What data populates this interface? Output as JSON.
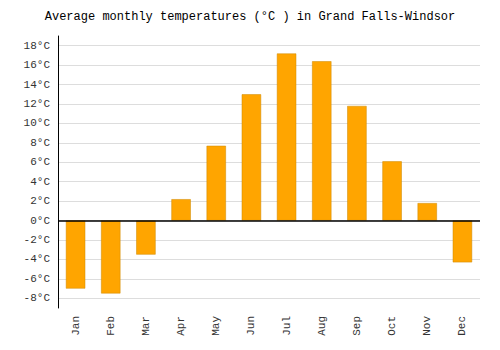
{
  "chart_data": {
    "type": "bar",
    "title": "Average monthly temperatures (°C ) in Grand Falls-Windsor",
    "categories": [
      "Jan",
      "Feb",
      "Mar",
      "Apr",
      "May",
      "Jun",
      "Jul",
      "Aug",
      "Sep",
      "Oct",
      "Nov",
      "Dec"
    ],
    "values": [
      -7.0,
      -7.5,
      -3.5,
      2.2,
      7.7,
      13.0,
      17.2,
      16.4,
      11.8,
      6.1,
      1.8,
      -4.3
    ],
    "color": "#FFA500",
    "ylim": [
      -9,
      19
    ],
    "yticks": [
      {
        "value": -8,
        "label": "-8°C"
      },
      {
        "value": -6,
        "label": "-6°C"
      },
      {
        "value": -4,
        "label": "-4°C"
      },
      {
        "value": -2,
        "label": "-2°C"
      },
      {
        "value": 0,
        "label": "0°C"
      },
      {
        "value": 2,
        "label": "2°C"
      },
      {
        "value": 4,
        "label": "4°C"
      },
      {
        "value": 6,
        "label": "6°C"
      },
      {
        "value": 8,
        "label": "8°C"
      },
      {
        "value": 10,
        "label": "10°C"
      },
      {
        "value": 12,
        "label": "12°C"
      },
      {
        "value": 14,
        "label": "14°C"
      },
      {
        "value": 16,
        "label": "16°C"
      },
      {
        "value": 18,
        "label": "18°C"
      }
    ],
    "grid": true
  }
}
